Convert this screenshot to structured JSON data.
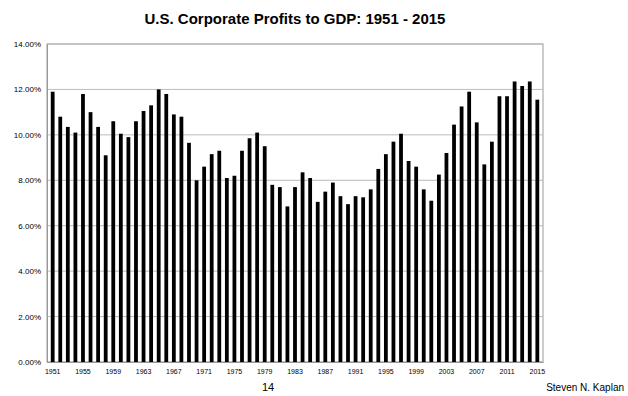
{
  "chart_data": {
    "type": "bar",
    "title": "U.S. Corporate Profits to GDP:  1951 - 2015",
    "categories": [
      "1951",
      null,
      null,
      null,
      "1955",
      null,
      null,
      null,
      "1959",
      null,
      null,
      null,
      "1963",
      null,
      null,
      null,
      "1967",
      null,
      null,
      null,
      "1971",
      null,
      null,
      null,
      "1975",
      null,
      null,
      null,
      "1979",
      null,
      null,
      null,
      "1983",
      null,
      null,
      null,
      "1987",
      null,
      null,
      null,
      "1991",
      null,
      null,
      null,
      "1995",
      null,
      null,
      null,
      "1999",
      null,
      null,
      null,
      "2003",
      null,
      null,
      null,
      "2007",
      null,
      null,
      null,
      "2011",
      null,
      null,
      null,
      "2015"
    ],
    "values": [
      11.9,
      10.8,
      10.35,
      10.1,
      11.8,
      11.0,
      10.35,
      9.1,
      10.6,
      10.05,
      9.9,
      10.6,
      11.05,
      11.3,
      12.0,
      11.8,
      10.9,
      10.8,
      9.65,
      8.0,
      8.6,
      9.15,
      9.3,
      8.1,
      8.2,
      9.3,
      9.85,
      10.1,
      9.5,
      7.8,
      7.7,
      6.85,
      7.7,
      8.35,
      8.1,
      7.05,
      7.5,
      7.9,
      7.3,
      6.95,
      7.3,
      7.25,
      7.6,
      8.5,
      9.15,
      9.7,
      10.05,
      8.85,
      8.6,
      7.6,
      7.1,
      8.25,
      9.2,
      10.45,
      11.25,
      11.9,
      10.55,
      8.7,
      9.7,
      11.7,
      11.7,
      12.35,
      12.15,
      12.35,
      11.55
    ],
    "color": "#000000",
    "ylim": [
      0,
      14
    ],
    "yticks": [
      {
        "value": 0,
        "label": "0.00%"
      },
      {
        "value": 2,
        "label": "2.00%"
      },
      {
        "value": 4,
        "label": "4.00%"
      },
      {
        "value": 6,
        "label": "6.00%"
      },
      {
        "value": 8,
        "label": "8.00%"
      },
      {
        "value": 10,
        "label": "10.00%"
      },
      {
        "value": 12,
        "label": "12.00%"
      },
      {
        "value": 14,
        "label": "14.00%"
      }
    ],
    "grid": true,
    "annotations": [
      "14",
      "Steven N. Kaplan"
    ]
  }
}
